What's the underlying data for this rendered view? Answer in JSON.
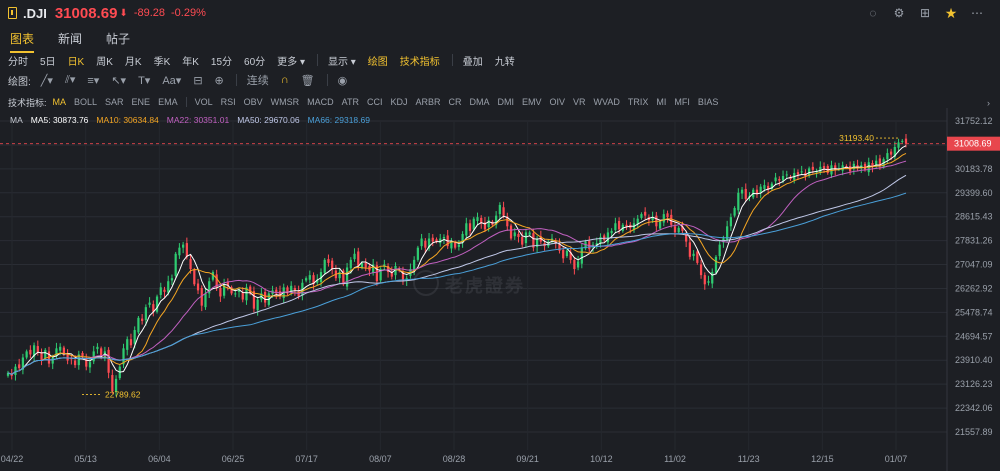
{
  "header": {
    "symbol": ".DJI",
    "price": "31008.69",
    "arrow": "⬇",
    "change": "-89.28",
    "change_pct": "-0.29%",
    "icons": [
      "clock-icon",
      "settings-icon",
      "grid-icon",
      "star-icon",
      "more-icon"
    ]
  },
  "tabs": [
    {
      "label": "图表",
      "active": true
    },
    {
      "label": "新闻",
      "active": false
    },
    {
      "label": "帖子",
      "active": false
    }
  ],
  "periods": {
    "items": [
      "分时",
      "5日",
      "日K",
      "周K",
      "月K",
      "季K",
      "年K",
      "15分",
      "60分",
      "更多 ▾"
    ],
    "active": "日K",
    "display_label": "显示 ▾",
    "draw_label": "绘图",
    "indicator_label": "技术指标",
    "overlay_label": "叠加",
    "nine_label": "九转"
  },
  "drawbar": {
    "label": "绘图:",
    "tools": [
      "line-tool-icon",
      "channel-tool-icon",
      "fib-tool-icon",
      "arrow-tool-icon",
      "ruler-tool-icon",
      "text-tool-icon",
      "zoom-tool-icon"
    ],
    "text_tool": "T▾",
    "font_tool": "Aa▾",
    "connect_label": "连续",
    "magnet_icon": "magnet-icon",
    "trash_icon": "trash-icon",
    "eye_icon": "eye-icon"
  },
  "indicators": {
    "label": "技术指标:",
    "main": [
      "MA",
      "BOLL",
      "SAR",
      "ENE",
      "EMA"
    ],
    "sub": [
      "VOL",
      "RSI",
      "OBV",
      "WMSR",
      "MACD",
      "ATR",
      "CCI",
      "KDJ",
      "ARBR",
      "CR",
      "DMA",
      "DMI",
      "EMV",
      "OIV",
      "VR",
      "WVAD",
      "TRIX",
      "MI",
      "MFI",
      "BIAS"
    ],
    "active": "MA",
    "end": "›"
  },
  "ma_legend": {
    "label": "MA",
    "ma5": "MA5: 30873.76",
    "ma10": "MA10: 30634.84",
    "ma22": "MA22: 30351.01",
    "ma50": "MA50: 29670.06",
    "ma66": "MA66: 29318.69"
  },
  "colors": {
    "up": "#2ecc71",
    "down": "#ff4b52",
    "ma5": "#ffffff",
    "ma10": "#f5a623",
    "ma22": "#c060c0",
    "ma50": "#c0c8e8",
    "ma66": "#4a9fd8",
    "accent": "#f2c230"
  },
  "watermark": "老虎證券",
  "chart_data": {
    "type": "candlestick",
    "y_ticks": [
      "31752.12",
      "30967.45",
      "30183.78",
      "29399.60",
      "28615.43",
      "27831.26",
      "27047.09",
      "26262.92",
      "25478.74",
      "24694.57",
      "23910.40",
      "23126.23",
      "22342.06",
      "21557.89"
    ],
    "ylim": [
      21557.89,
      31752.12
    ],
    "x_ticks": [
      "04/22",
      "05/13",
      "06/04",
      "06/25",
      "07/17",
      "08/07",
      "08/28",
      "09/21",
      "10/12",
      "11/02",
      "11/23",
      "12/15",
      "01/07"
    ],
    "current_price": "31008.69",
    "high_annotation": "31193.40",
    "low_annotation": "22789.62",
    "closes": [
      23500,
      23400,
      23700,
      23650,
      24000,
      24200,
      24100,
      24400,
      24150,
      23900,
      24250,
      23800,
      24000,
      24300,
      24350,
      24100,
      23900,
      23950,
      23750,
      24100,
      24050,
      23700,
      23850,
      24200,
      24350,
      24000,
      24200,
      23500,
      22900,
      23300,
      23700,
      24300,
      24600,
      24400,
      24900,
      25300,
      25200,
      25650,
      25800,
      25500,
      26000,
      26300,
      26150,
      26500,
      26600,
      27400,
      27600,
      27700,
      27300,
      26900,
      26400,
      26200,
      25700,
      26100,
      26500,
      26800,
      26300,
      26000,
      26400,
      26350,
      26100,
      26100,
      26200,
      25900,
      26300,
      26100,
      25600,
      25900,
      26100,
      25800,
      26100,
      26200,
      26100,
      26000,
      26300,
      26100,
      26350,
      26200,
      26000,
      26450,
      26600,
      26700,
      26400,
      26550,
      26800,
      27200,
      27100,
      26900,
      26600,
      26800,
      26400,
      26950,
      27200,
      27400,
      27000,
      27100,
      26950,
      26850,
      27050,
      26500,
      26900,
      27050,
      26800,
      26650,
      27000,
      26850,
      26500,
      26600,
      26900,
      27200,
      27600,
      27900,
      27600,
      27900,
      27800,
      27800,
      27900,
      27950,
      27650,
      27800,
      27600,
      27700,
      28050,
      28400,
      28150,
      28550,
      28600,
      28400,
      28200,
      28500,
      28350,
      28650,
      29000,
      28650,
      28300,
      27900,
      28100,
      27950,
      27700,
      28100,
      28100,
      27600,
      27900,
      27800,
      27650,
      27800,
      27900,
      27750,
      27500,
      27250,
      27500,
      27200,
      26900,
      27150,
      27600,
      27800,
      27550,
      27700,
      27750,
      27950,
      27850,
      28100,
      28150,
      28400,
      28200,
      28350,
      28300,
      28250,
      28400,
      28550,
      28700,
      28650,
      28500,
      28600,
      28300,
      28450,
      28700,
      28600,
      28350,
      28100,
      28250,
      28150,
      27800,
      27300,
      27400,
      27100,
      26700,
      26400,
      26500,
      26800,
      27300,
      27700,
      27900,
      28300,
      28600,
      28900,
      29400,
      29500,
      29200,
      29300,
      29500,
      29350,
      29600,
      29650,
      29500,
      29700,
      29900,
      29800,
      29950,
      30000,
      29850,
      30050,
      30000,
      30100,
      29950,
      30200,
      30150,
      30100,
      30250,
      30200,
      30050,
      30300,
      30150,
      30200,
      30300,
      30250,
      30100,
      30350,
      30200,
      30300,
      30150,
      30400,
      30250,
      30450,
      30300,
      30500,
      30700,
      30650,
      30900,
      31050,
      31100,
      31008
    ]
  }
}
